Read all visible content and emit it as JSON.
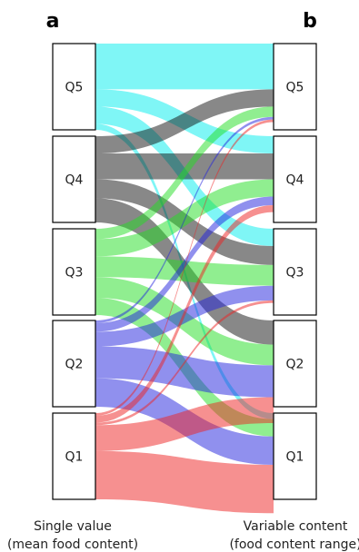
{
  "panels": {
    "left_letter": "a",
    "right_letter": "b"
  },
  "captions": {
    "left_line1": "Single value",
    "left_line2": "(mean food content)",
    "right_line1": "Variable content",
    "right_line2": "(food content range)"
  },
  "colors": {
    "Q5": "#00eeee",
    "Q4": "#111111",
    "Q3": "#22dd22",
    "Q2": "#2222dd",
    "Q1": "#ee2222"
  },
  "chart_data": {
    "type": "alluvial",
    "left_nodes": [
      "Q5",
      "Q4",
      "Q3",
      "Q2",
      "Q1"
    ],
    "right_nodes": [
      "Q5",
      "Q4",
      "Q3",
      "Q2",
      "Q1"
    ],
    "flows": [
      {
        "from": "Q5",
        "to": "Q5",
        "value": 0.53
      },
      {
        "from": "Q5",
        "to": "Q4",
        "value": 0.2
      },
      {
        "from": "Q5",
        "to": "Q3",
        "value": 0.2
      },
      {
        "from": "Q5",
        "to": "Q1",
        "value": 0.07
      },
      {
        "from": "Q4",
        "to": "Q5",
        "value": 0.2
      },
      {
        "from": "Q4",
        "to": "Q4",
        "value": 0.3
      },
      {
        "from": "Q4",
        "to": "Q3",
        "value": 0.22
      },
      {
        "from": "Q4",
        "to": "Q2",
        "value": 0.28
      },
      {
        "from": "Q3",
        "to": "Q5",
        "value": 0.12
      },
      {
        "from": "Q3",
        "to": "Q4",
        "value": 0.2
      },
      {
        "from": "Q3",
        "to": "Q3",
        "value": 0.24
      },
      {
        "from": "Q3",
        "to": "Q2",
        "value": 0.24
      },
      {
        "from": "Q3",
        "to": "Q1",
        "value": 0.2
      },
      {
        "from": "Q2",
        "to": "Q5",
        "value": 0.03
      },
      {
        "from": "Q2",
        "to": "Q4",
        "value": 0.1
      },
      {
        "from": "Q2",
        "to": "Q3",
        "value": 0.17
      },
      {
        "from": "Q2",
        "to": "Q2",
        "value": 0.37
      },
      {
        "from": "Q2",
        "to": "Q1",
        "value": 0.33
      },
      {
        "from": "Q1",
        "to": "Q5",
        "value": 0.03
      },
      {
        "from": "Q1",
        "to": "Q4",
        "value": 0.08
      },
      {
        "from": "Q1",
        "to": "Q3",
        "value": 0.03
      },
      {
        "from": "Q1",
        "to": "Q2",
        "value": 0.3
      },
      {
        "from": "Q1",
        "to": "Q1",
        "value": 0.56
      }
    ]
  }
}
